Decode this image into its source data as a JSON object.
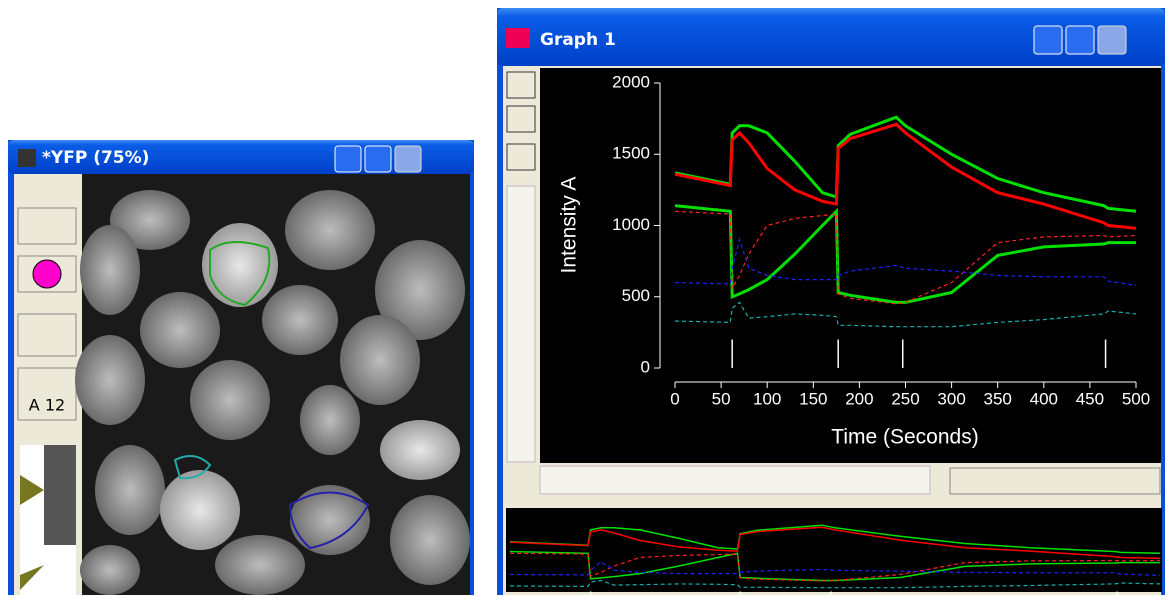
{
  "image_window": {
    "title": "*YFP (75%)",
    "tool_label": "A 12"
  },
  "graph_window": {
    "title": "Graph 1",
    "chart": {
      "type": "line",
      "ylabel": "Intensity A",
      "xlabel": "Time (Seconds)",
      "xlim": [
        0,
        500
      ],
      "xticks": [
        0,
        50,
        100,
        150,
        200,
        250,
        300,
        350,
        400,
        450,
        500
      ],
      "ylim": [
        0,
        2000
      ],
      "yticks": [
        0,
        500,
        1000,
        1500,
        2000
      ],
      "x": [
        0,
        60,
        62,
        70,
        80,
        100,
        130,
        160,
        175,
        177,
        190,
        240,
        250,
        300,
        350,
        400,
        465,
        470,
        500
      ],
      "event_markers": [
        62,
        177,
        247,
        467
      ],
      "series": [
        {
          "color": "#00e000",
          "style": "solid",
          "values": [
            1370,
            1290,
            1650,
            1700,
            1700,
            1650,
            1450,
            1230,
            1200,
            1560,
            1640,
            1760,
            1700,
            1500,
            1330,
            1230,
            1140,
            1120,
            1100
          ]
        },
        {
          "color": "#ff0000",
          "style": "solid",
          "values": [
            1360,
            1280,
            1600,
            1650,
            1580,
            1400,
            1250,
            1170,
            1150,
            1540,
            1610,
            1710,
            1650,
            1410,
            1230,
            1150,
            1020,
            1000,
            980
          ]
        },
        {
          "color": "#00e000",
          "style": "solid",
          "values": [
            1140,
            1100,
            500,
            520,
            550,
            620,
            800,
            1000,
            1100,
            530,
            510,
            460,
            460,
            530,
            790,
            850,
            870,
            880,
            880
          ]
        },
        {
          "color": "#ff2020",
          "style": "dashed",
          "values": [
            1100,
            1080,
            560,
            650,
            800,
            1000,
            1050,
            1070,
            1080,
            520,
            490,
            450,
            460,
            600,
            880,
            920,
            930,
            920,
            930
          ]
        },
        {
          "color": "#2020ff",
          "style": "dashed",
          "values": [
            600,
            590,
            700,
            900,
            700,
            650,
            620,
            620,
            620,
            650,
            680,
            720,
            700,
            680,
            650,
            640,
            640,
            610,
            580
          ]
        },
        {
          "color": "#10b0b0",
          "style": "dashed",
          "values": [
            330,
            320,
            420,
            460,
            350,
            360,
            380,
            370,
            360,
            300,
            300,
            290,
            290,
            290,
            320,
            340,
            380,
            400,
            380
          ]
        }
      ]
    }
  }
}
